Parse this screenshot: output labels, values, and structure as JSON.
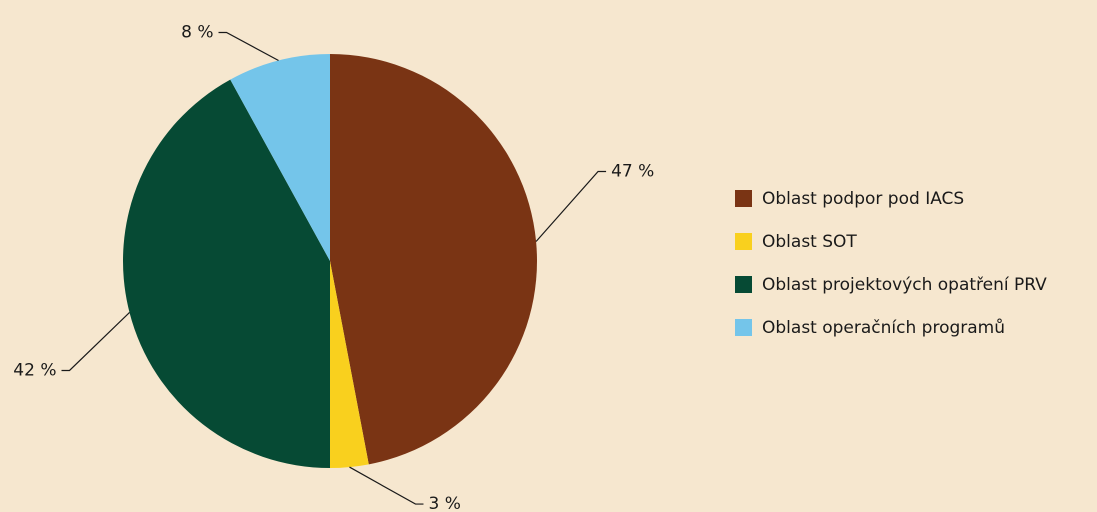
{
  "chart_data": {
    "type": "pie",
    "categories": [
      "Oblast podpor pod IACS",
      "Oblast SOT",
      "Oblast projektových opatření PRV",
      "Oblast operačních programů"
    ],
    "values": [
      47,
      3,
      42,
      8
    ],
    "value_labels": [
      "47 %",
      "3 %",
      "42 %",
      "8 %"
    ],
    "colors": [
      "#7a3414",
      "#f9d01e",
      "#064a34",
      "#74c5ea"
    ],
    "legend": "right"
  }
}
